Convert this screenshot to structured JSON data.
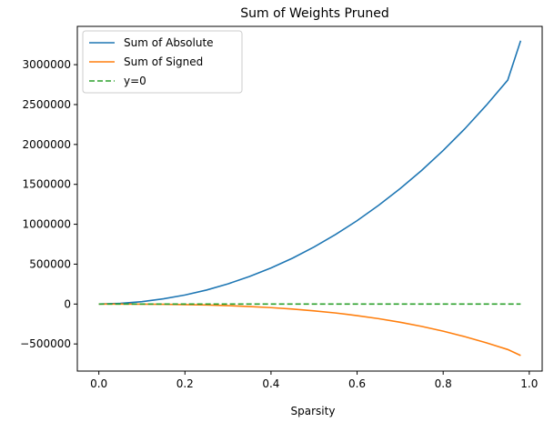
{
  "chart_data": {
    "type": "line",
    "title": "Sum of Weights Pruned",
    "xlabel": "Sparsity",
    "ylabel": "",
    "xlim": [
      -0.05,
      1.03
    ],
    "ylim": [
      -840000,
      3480000
    ],
    "xticks": [
      0.0,
      0.2,
      0.4,
      0.6,
      0.8,
      1.0
    ],
    "xtick_labels": [
      "0.0",
      "0.2",
      "0.4",
      "0.6",
      "0.8",
      "1.0"
    ],
    "yticks": [
      -500000,
      0,
      500000,
      1000000,
      1500000,
      2000000,
      2500000,
      3000000
    ],
    "ytick_labels": [
      "−500000",
      "0",
      "500000",
      "1000000",
      "1500000",
      "2000000",
      "2500000",
      "3000000"
    ],
    "grid": false,
    "legend_position": "top-left",
    "x": [
      0.0,
      0.05,
      0.1,
      0.15,
      0.2,
      0.25,
      0.3,
      0.35,
      0.4,
      0.45,
      0.5,
      0.55,
      0.6,
      0.65,
      0.7,
      0.75,
      0.8,
      0.85,
      0.9,
      0.95,
      0.98
    ],
    "series": [
      {
        "name": "Sum of Absolute",
        "color": "#1f77b4",
        "style": "solid",
        "values": [
          0,
          8000,
          30000,
          65000,
          113000,
          175000,
          253000,
          345000,
          452000,
          575000,
          715000,
          872000,
          1045000,
          1237000,
          1447000,
          1675000,
          1925000,
          2195000,
          2490000,
          2807000,
          3300000
        ]
      },
      {
        "name": "Sum of Signed",
        "color": "#ff7f0e",
        "style": "solid",
        "values": [
          0,
          0,
          -1000,
          -3000,
          -7000,
          -12000,
          -20000,
          -31000,
          -45000,
          -63000,
          -86000,
          -112000,
          -145000,
          -183000,
          -228000,
          -280000,
          -340000,
          -408000,
          -485000,
          -570000,
          -645000
        ]
      },
      {
        "name": "y=0",
        "color": "#2ca02c",
        "style": "dashed",
        "values": [
          0,
          0,
          0,
          0,
          0,
          0,
          0,
          0,
          0,
          0,
          0,
          0,
          0,
          0,
          0,
          0,
          0,
          0,
          0,
          0,
          0
        ]
      }
    ]
  }
}
